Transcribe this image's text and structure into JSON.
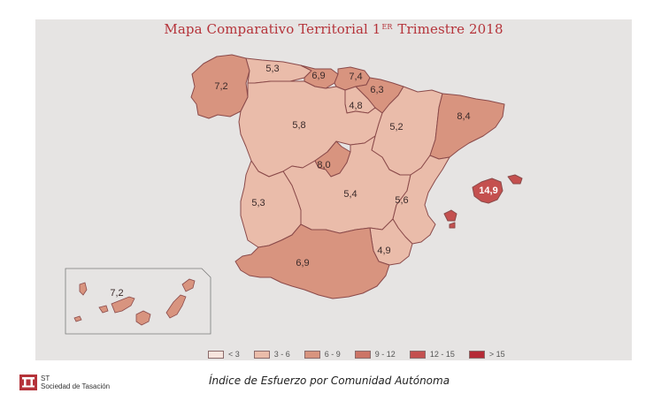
{
  "title": {
    "main": "Mapa Comparativo Territorial 1",
    "superscript": "ER",
    "rest": " Trimestre 2018"
  },
  "colors": {
    "lt3": "#f7e4dd",
    "r3_6": "#eabcaa",
    "r6_9": "#d8947f",
    "r9_12": "#cc7466",
    "r12_15": "#c4504f",
    "gt15": "#b52a35",
    "border": "#8a4a4a",
    "panel": "#e6e4e3"
  },
  "regions": [
    {
      "name": "Galicia",
      "value": "7,2",
      "range": "r6_9"
    },
    {
      "name": "Asturias",
      "value": "5,3",
      "range": "r3_6"
    },
    {
      "name": "Cantabria",
      "value": "6,9",
      "range": "r6_9"
    },
    {
      "name": "País Vasco",
      "value": "7,4",
      "range": "r6_9"
    },
    {
      "name": "Navarra",
      "value": "6,3",
      "range": "r6_9"
    },
    {
      "name": "La Rioja",
      "value": "4,8",
      "range": "r3_6"
    },
    {
      "name": "Aragón",
      "value": "5,2",
      "range": "r3_6"
    },
    {
      "name": "Cataluña",
      "value": "8,4",
      "range": "r6_9"
    },
    {
      "name": "Castilla y León",
      "value": "5,8",
      "range": "r3_6"
    },
    {
      "name": "Madrid",
      "value": "8,0",
      "range": "r6_9"
    },
    {
      "name": "Castilla-La Mancha",
      "value": "5,4",
      "range": "r3_6"
    },
    {
      "name": "Extremadura",
      "value": "5,3",
      "range": "r3_6"
    },
    {
      "name": "Comunidad Valenciana",
      "value": "5,6",
      "range": "r3_6"
    },
    {
      "name": "Baleares",
      "value": "14,9",
      "range": "r12_15"
    },
    {
      "name": "Murcia",
      "value": "4,9",
      "range": "r3_6"
    },
    {
      "name": "Andalucía",
      "value": "6,9",
      "range": "r6_9"
    },
    {
      "name": "Canarias",
      "value": "7,2",
      "range": "r6_9"
    }
  ],
  "legend": [
    {
      "label": "< 3",
      "key": "lt3"
    },
    {
      "label": "3 - 6",
      "key": "r3_6"
    },
    {
      "label": "6 - 9",
      "key": "r6_9"
    },
    {
      "label": "9 - 12",
      "key": "r9_12"
    },
    {
      "label": "12 - 15",
      "key": "r12_15"
    },
    {
      "label": "> 15",
      "key": "gt15"
    }
  ],
  "logo": {
    "abbr": "ST",
    "name": "Sociedad de Tasación"
  },
  "caption": "Índice de Esfuerzo por Comunidad Autónoma"
}
